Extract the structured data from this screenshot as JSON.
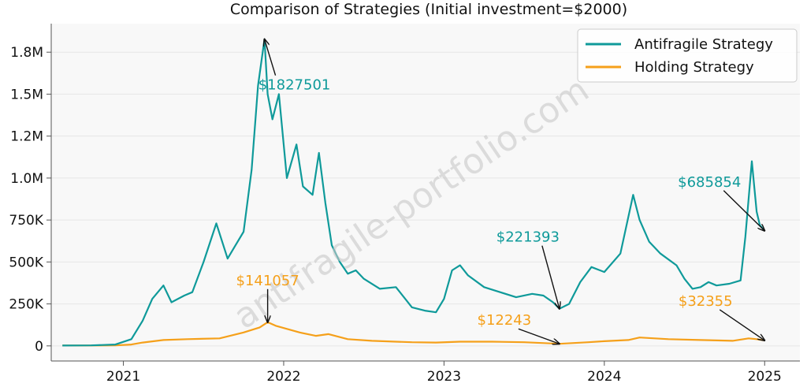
{
  "chart_data": {
    "type": "line",
    "title": "Comparison of Strategies (Initial investment=$2000)",
    "xlabel": "",
    "ylabel": "",
    "xlim": [
      2020.55,
      2025.22
    ],
    "ylim": [
      -90000,
      1920000
    ],
    "x_ticks": [
      {
        "value": 2021,
        "label": "2021"
      },
      {
        "value": 2022,
        "label": "2022"
      },
      {
        "value": 2023,
        "label": "2023"
      },
      {
        "value": 2024,
        "label": "2024"
      },
      {
        "value": 2025,
        "label": "2025"
      }
    ],
    "y_ticks": [
      {
        "value": 0,
        "label": "0"
      },
      {
        "value": 250000,
        "label": "250K"
      },
      {
        "value": 500000,
        "label": "500K"
      },
      {
        "value": 750000,
        "label": "750K"
      },
      {
        "value": 1000000,
        "label": "1.0M"
      },
      {
        "value": 1250000,
        "label": "1.2M"
      },
      {
        "value": 1500000,
        "label": "1.5M"
      },
      {
        "value": 1750000,
        "label": "1.8M"
      }
    ],
    "grid": "horizontal",
    "legend_position": "top-right",
    "series": [
      {
        "name": "Antifragile Strategy",
        "color": "#0f9a9a",
        "x": [
          2020.62,
          2020.8,
          2020.95,
          2021.05,
          2021.12,
          2021.18,
          2021.25,
          2021.3,
          2021.38,
          2021.43,
          2021.5,
          2021.58,
          2021.65,
          2021.7,
          2021.75,
          2021.8,
          2021.84,
          2021.88,
          2021.9,
          2021.93,
          2021.97,
          2022.02,
          2022.08,
          2022.12,
          2022.18,
          2022.22,
          2022.26,
          2022.3,
          2022.35,
          2022.4,
          2022.45,
          2022.5,
          2022.6,
          2022.7,
          2022.8,
          2022.88,
          2022.95,
          2023.0,
          2023.05,
          2023.1,
          2023.15,
          2023.25,
          2023.35,
          2023.45,
          2023.55,
          2023.62,
          2023.68,
          2023.72,
          2023.78,
          2023.85,
          2023.92,
          2024.0,
          2024.1,
          2024.18,
          2024.22,
          2024.28,
          2024.35,
          2024.45,
          2024.5,
          2024.55,
          2024.6,
          2024.65,
          2024.7,
          2024.78,
          2024.85,
          2024.88,
          2024.92,
          2024.95,
          2024.97,
          2025.0
        ],
        "values": [
          2000,
          3000,
          8000,
          40000,
          150000,
          280000,
          360000,
          260000,
          300000,
          320000,
          500000,
          730000,
          520000,
          600000,
          680000,
          1050000,
          1550000,
          1827501,
          1500000,
          1350000,
          1500000,
          1000000,
          1200000,
          950000,
          900000,
          1150000,
          850000,
          600000,
          500000,
          430000,
          450000,
          400000,
          340000,
          350000,
          230000,
          210000,
          200000,
          280000,
          450000,
          480000,
          420000,
          350000,
          320000,
          290000,
          310000,
          300000,
          260000,
          221393,
          250000,
          380000,
          470000,
          440000,
          550000,
          900000,
          750000,
          620000,
          550000,
          480000,
          400000,
          340000,
          350000,
          380000,
          360000,
          370000,
          390000,
          650000,
          1100000,
          800000,
          720000,
          685854
        ]
      },
      {
        "name": "Holding Strategy",
        "color": "#f5a01a",
        "x": [
          2020.62,
          2020.8,
          2020.95,
          2021.05,
          2021.12,
          2021.25,
          2021.4,
          2021.6,
          2021.75,
          2021.85,
          2021.9,
          2021.95,
          2022.1,
          2022.2,
          2022.28,
          2022.4,
          2022.55,
          2022.8,
          2022.95,
          2023.1,
          2023.3,
          2023.5,
          2023.72,
          2023.9,
          2024.0,
          2024.15,
          2024.22,
          2024.4,
          2024.6,
          2024.8,
          2024.9,
          2024.95,
          2025.0
        ],
        "values": [
          2000,
          2500,
          3000,
          8000,
          20000,
          35000,
          40000,
          45000,
          80000,
          110000,
          141057,
          120000,
          80000,
          60000,
          70000,
          40000,
          30000,
          22000,
          20000,
          25000,
          25000,
          22000,
          12243,
          22000,
          28000,
          35000,
          50000,
          40000,
          35000,
          30000,
          45000,
          40000,
          32355
        ]
      }
    ],
    "annotations": [
      {
        "text": "$1827501",
        "x": 2021.88,
        "y": 1827501,
        "color": "#0f9a9a"
      },
      {
        "text": "$221393",
        "x": 2023.72,
        "y": 221393,
        "color": "#0f9a9a"
      },
      {
        "text": "$685854",
        "x": 2025.0,
        "y": 685854,
        "color": "#0f9a9a"
      },
      {
        "text": "$141057",
        "x": 2021.9,
        "y": 141057,
        "color": "#f5a01a"
      },
      {
        "text": "$12243",
        "x": 2023.72,
        "y": 12243,
        "color": "#f5a01a"
      },
      {
        "text": "$32355",
        "x": 2025.0,
        "y": 32355,
        "color": "#f5a01a"
      }
    ],
    "watermark": "antifragile-portfolio.com"
  }
}
